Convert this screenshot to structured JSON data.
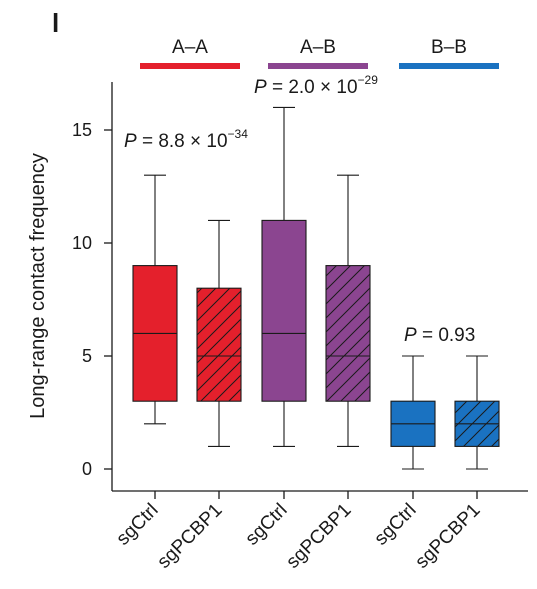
{
  "panel_label": "l",
  "chart_data": {
    "type": "box",
    "ylabel": "Long-range contact frequency",
    "ylim": [
      0,
      17
    ],
    "yticks": [
      0,
      5,
      10,
      15
    ],
    "categories": [
      "sgCtrl",
      "sgPCBP1",
      "sgCtrl",
      "sgPCBP1",
      "sgCtrl",
      "sgPCBP1"
    ],
    "groups": [
      {
        "name": "A–A",
        "color": "#e4202c",
        "pvalue": {
          "prefix": "P",
          "text": " = 8.8 × 10",
          "exponent": "−34"
        },
        "boxes": [
          {
            "label": "sgCtrl",
            "hatched": false,
            "whisker_low": 2,
            "q1": 3,
            "median": 6,
            "q3": 9,
            "whisker_high": 13
          },
          {
            "label": "sgPCBP1",
            "hatched": true,
            "whisker_low": 1,
            "q1": 3,
            "median": 5,
            "q3": 8,
            "whisker_high": 11
          }
        ]
      },
      {
        "name": "A–B",
        "color": "#8b4590",
        "pvalue": {
          "prefix": "P",
          "text": " = 2.0 × 10",
          "exponent": "−29"
        },
        "boxes": [
          {
            "label": "sgCtrl",
            "hatched": false,
            "whisker_low": 1,
            "q1": 3,
            "median": 6,
            "q3": 11,
            "whisker_high": 16
          },
          {
            "label": "sgPCBP1",
            "hatched": true,
            "whisker_low": 1,
            "q1": 3,
            "median": 5,
            "q3": 9,
            "whisker_high": 13
          }
        ]
      },
      {
        "name": "B–B",
        "color": "#1a72c1",
        "pvalue": {
          "prefix": "P",
          "text": " = 0.93",
          "exponent": ""
        },
        "boxes": [
          {
            "label": "sgCtrl",
            "hatched": false,
            "whisker_low": 0,
            "q1": 1,
            "median": 2,
            "q3": 3,
            "whisker_high": 5
          },
          {
            "label": "sgPCBP1",
            "hatched": true,
            "whisker_low": 0,
            "q1": 1,
            "median": 2,
            "q3": 3,
            "whisker_high": 5
          }
        ]
      }
    ]
  }
}
